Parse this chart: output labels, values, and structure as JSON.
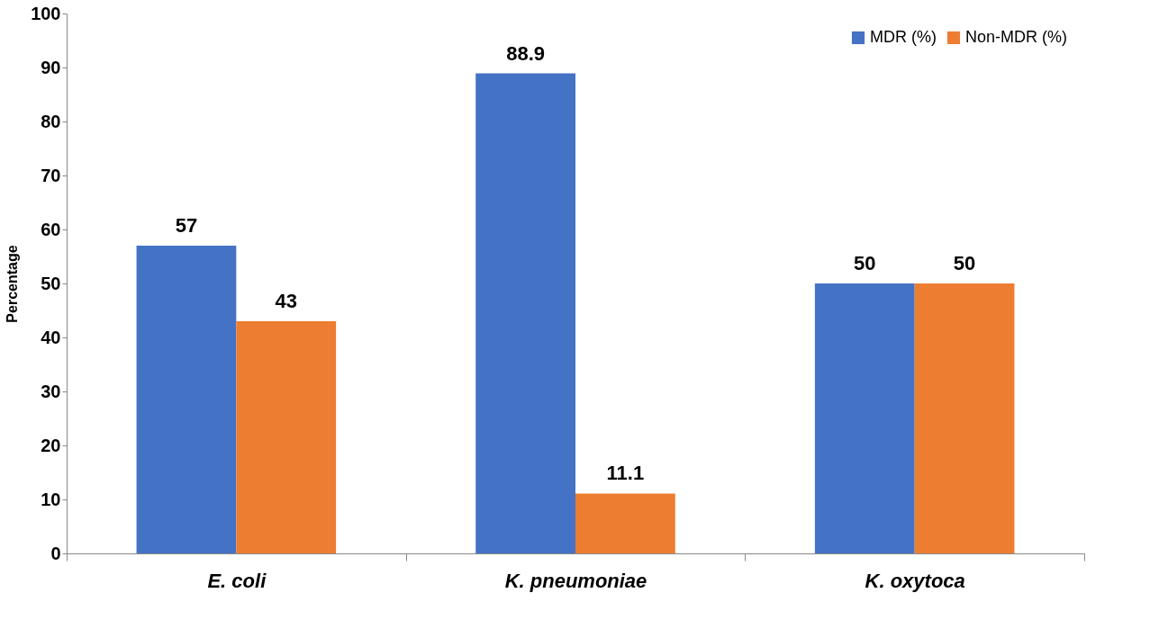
{
  "chart_data": {
    "type": "bar",
    "ylabel": "Percentage",
    "categories": [
      "E. coli",
      "K. pneumoniae",
      "K. oxytoca"
    ],
    "series": [
      {
        "name": "MDR (%)",
        "color": "#4472c4",
        "values": [
          57,
          88.9,
          50
        ]
      },
      {
        "name": "Non-MDR (%)",
        "color": "#ed7d31",
        "values": [
          43,
          11.1,
          50
        ]
      }
    ],
    "ylim": [
      0,
      100
    ],
    "yticks": [
      0,
      10,
      20,
      30,
      40,
      50,
      60,
      70,
      80,
      90,
      100
    ],
    "grid": false,
    "legend": "top right",
    "data_labels": true
  }
}
